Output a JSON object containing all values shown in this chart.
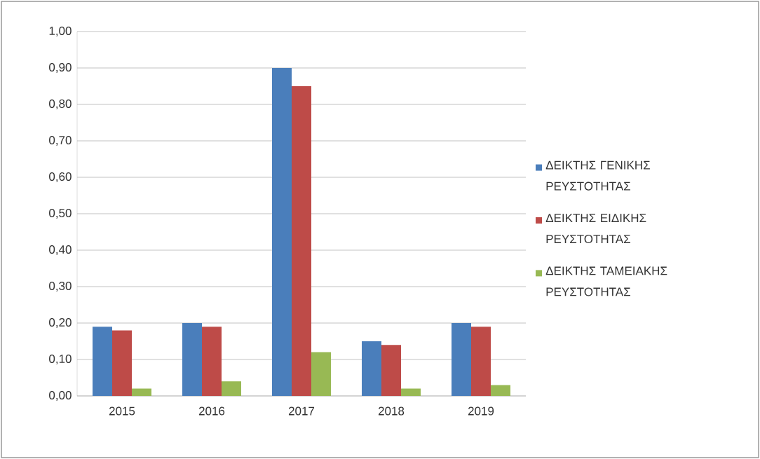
{
  "chart_data": {
    "type": "bar",
    "categories": [
      "2015",
      "2016",
      "2017",
      "2018",
      "2019"
    ],
    "series": [
      {
        "name": "ΔΕΙΚΤΗΣ ΓΕΝΙΚΗΣ ΡΕΥΣΤΟΤΗΤΑΣ",
        "color": "#4a7ebb",
        "values": [
          0.19,
          0.2,
          0.9,
          0.15,
          0.2
        ]
      },
      {
        "name": "ΔΕΙΚΤΗΣ ΕΙΔΙΚΗΣ ΡΕΥΣΤΟΤΗΤΑΣ",
        "color": "#be4b48",
        "values": [
          0.18,
          0.19,
          0.85,
          0.14,
          0.19
        ]
      },
      {
        "name": "ΔΕΙΚΤΗΣ ΤΑΜΕΙΑΚΗΣ ΡΕΥΣΤΟΤΗΤΑΣ",
        "color": "#98b954",
        "values": [
          0.02,
          0.04,
          0.12,
          0.02,
          0.03
        ]
      }
    ],
    "ylim": [
      0,
      1.0
    ],
    "yticks": [
      {
        "value": 0,
        "label": "0,00"
      },
      {
        "value": 0.1,
        "label": "0,10"
      },
      {
        "value": 0.2,
        "label": "0,20"
      },
      {
        "value": 0.3,
        "label": "0,30"
      },
      {
        "value": 0.4,
        "label": "0,40"
      },
      {
        "value": 0.5,
        "label": "0,50"
      },
      {
        "value": 0.6,
        "label": "0,60"
      },
      {
        "value": 0.7,
        "label": "0,70"
      },
      {
        "value": 0.8,
        "label": "0,80"
      },
      {
        "value": 0.9,
        "label": "0,90"
      },
      {
        "value": 1.0,
        "label": "1,00"
      }
    ],
    "grid": "y",
    "legend": "right"
  }
}
